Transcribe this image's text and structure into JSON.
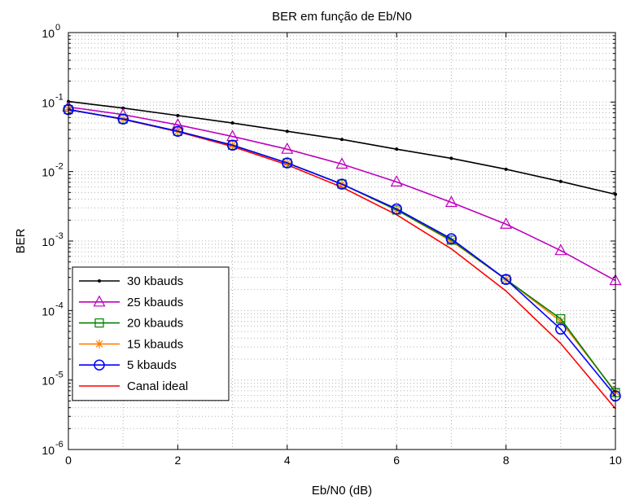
{
  "chart_data": {
    "type": "line",
    "title": "BER em função de Eb/N0",
    "xlabel": "Eb/N0 (dB)",
    "ylabel": "BER",
    "xlim": [
      0,
      10
    ],
    "ylim": [
      1e-06,
      1
    ],
    "yscale": "log",
    "grid": true,
    "legend_position": "bottom-left",
    "x_ticks": [
      "0",
      "2",
      "4",
      "6",
      "8",
      "10"
    ],
    "y_ticks": [
      {
        "base": "10",
        "exp": "0"
      },
      {
        "base": "10",
        "exp": "-1"
      },
      {
        "base": "10",
        "exp": "-2"
      },
      {
        "base": "10",
        "exp": "-3"
      },
      {
        "base": "10",
        "exp": "-4"
      },
      {
        "base": "10",
        "exp": "-5"
      },
      {
        "base": "10",
        "exp": "-6"
      }
    ],
    "x": [
      0,
      1,
      2,
      3,
      4,
      5,
      6,
      7,
      8,
      9,
      10
    ],
    "series": [
      {
        "name": "30 kbauds",
        "color": "#000000",
        "marker": "dot",
        "values": [
          0.102,
          0.082,
          0.064,
          0.05,
          0.038,
          0.029,
          0.021,
          0.0155,
          0.0108,
          0.0072,
          0.0047
        ]
      },
      {
        "name": "25 kbauds",
        "color": "#bf00bf",
        "marker": "triangle",
        "values": [
          0.085,
          0.066,
          0.047,
          0.032,
          0.021,
          0.0128,
          0.0071,
          0.0036,
          0.00175,
          0.00073,
          0.00027
        ]
      },
      {
        "name": "20 kbauds",
        "color": "#008000",
        "marker": "square",
        "values": [
          0.078,
          0.057,
          0.038,
          0.024,
          0.0133,
          0.0066,
          0.0028,
          0.00103,
          0.00028,
          7.6e-05,
          6.6e-06
        ]
      },
      {
        "name": "15 kbauds",
        "color": "#ff8000",
        "marker": "star",
        "values": [
          0.078,
          0.057,
          0.038,
          0.024,
          0.0133,
          0.0066,
          0.0028,
          0.001,
          0.00028,
          7e-05,
          6.8e-06
        ]
      },
      {
        "name": "5 kbauds",
        "color": "#0000ff",
        "marker": "circle",
        "values": [
          0.078,
          0.057,
          0.038,
          0.024,
          0.0133,
          0.0066,
          0.0029,
          0.00108,
          0.00028,
          5.4e-05,
          5.9e-06
        ]
      },
      {
        "name": "Canal ideal",
        "color": "#ff0000",
        "marker": "none",
        "values": [
          0.0786,
          0.0563,
          0.0375,
          0.0229,
          0.0125,
          0.00595,
          0.00239,
          0.000773,
          0.000191,
          3.36e-05,
          3.87e-06
        ]
      }
    ]
  }
}
